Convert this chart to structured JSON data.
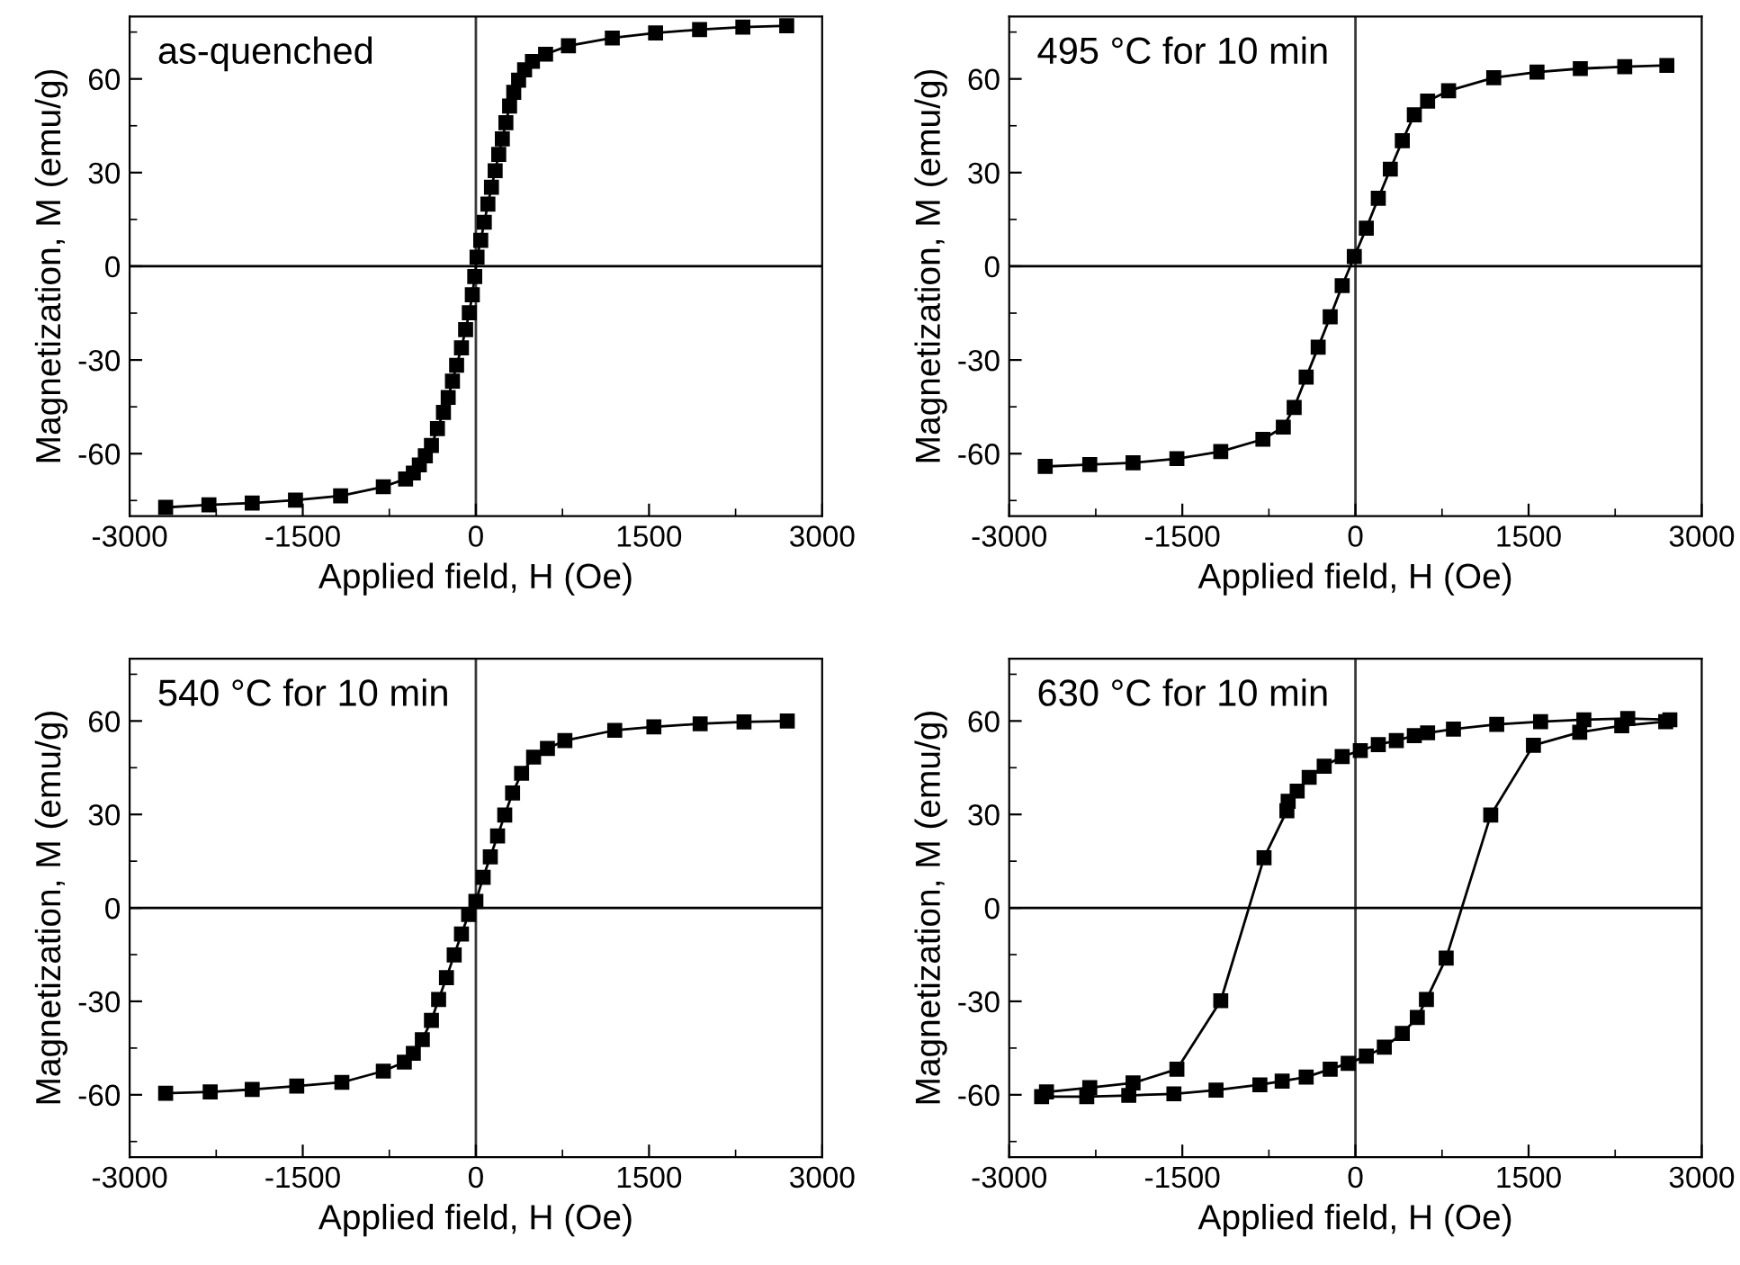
{
  "chart_data": [
    {
      "type": "line",
      "annotations": [
        "as-quenched"
      ],
      "xlabel": "Applied field, H (Oe)",
      "ylabel": "Magnetization, M (emu/g)",
      "xlim": [
        -3000,
        3000
      ],
      "ylim": [
        -80,
        80
      ],
      "xticks": [
        -3000,
        {
          "value": -2250,
          "label": null
        },
        -1500,
        {
          "value": -750,
          "label": null
        },
        0,
        {
          "value": 750,
          "label": null
        },
        1500,
        {
          "value": 2250,
          "label": null
        },
        3000
      ],
      "yticks": [
        {
          "value": -75,
          "label": null
        },
        -60,
        {
          "value": -45,
          "label": null
        },
        -30,
        {
          "value": -15,
          "label": null
        },
        0,
        {
          "value": 15,
          "label": null
        },
        30,
        {
          "value": 45,
          "label": null
        },
        60,
        {
          "value": 75,
          "label": null
        }
      ],
      "ref_lines": [
        {
          "axis": "x",
          "value": 0,
          "color": "#3a3a3a"
        },
        {
          "axis": "y",
          "value": 0,
          "color": "#000000"
        }
      ],
      "marker": "square",
      "line_style": "solid",
      "grid": false,
      "legend": false,
      "series": [
        {
          "color": "#000000",
          "x": [
            -2688,
            -2313,
            -1938,
            -1563,
            -1172,
            -802,
            -609,
            -542,
            -490,
            -438,
            -385,
            -333,
            -281,
            -240,
            -203,
            -167,
            -125,
            -89,
            -57,
            -31,
            -10,
            10,
            42,
            73,
            104,
            135,
            167,
            198,
            229,
            260,
            292,
            328,
            370,
            422,
            490,
            604,
            802,
            1182,
            1557,
            1938,
            2313,
            2693
          ],
          "values": [
            -77.2,
            -76.4,
            -75.8,
            -74.9,
            -73.5,
            -70.6,
            -68.1,
            -66.2,
            -63.6,
            -60.7,
            -57.4,
            -52,
            -46.8,
            -42,
            -36.8,
            -31.7,
            -26.1,
            -20.3,
            -14.9,
            -9.1,
            -3.3,
            2.9,
            8.3,
            14.1,
            19.9,
            25.3,
            30.6,
            35.8,
            40.8,
            46,
            51.3,
            55.7,
            59.6,
            62.9,
            65.6,
            67.9,
            70.6,
            73.1,
            74.7,
            75.8,
            76.6,
            77
          ]
        }
      ]
    },
    {
      "type": "line",
      "annotations": [
        "495 °C for 10 min"
      ],
      "xlabel": "Applied field, H (Oe)",
      "ylabel": "Magnetization, M (emu/g)",
      "xlim": [
        -3000,
        3000
      ],
      "ylim": [
        -80,
        80
      ],
      "xticks": [
        -3000,
        {
          "value": -2250,
          "label": null
        },
        -1500,
        {
          "value": -750,
          "label": null
        },
        0,
        {
          "value": 750,
          "label": null
        },
        1500,
        {
          "value": 2250,
          "label": null
        },
        3000
      ],
      "yticks": [
        {
          "value": -75,
          "label": null
        },
        -60,
        {
          "value": -45,
          "label": null
        },
        -30,
        {
          "value": -15,
          "label": null
        },
        0,
        {
          "value": 15,
          "label": null
        },
        30,
        {
          "value": 45,
          "label": null
        },
        60,
        {
          "value": 75,
          "label": null
        }
      ],
      "ref_lines": [
        {
          "axis": "x",
          "value": 0,
          "color": "#3a3a3a"
        },
        {
          "axis": "y",
          "value": 0,
          "color": "#000000"
        }
      ],
      "marker": "square",
      "line_style": "solid",
      "grid": false,
      "legend": false,
      "series": [
        {
          "color": "#000000",
          "x": [
            -2688,
            -2302,
            -1927,
            -1547,
            -1167,
            -802,
            -625,
            -531,
            -427,
            -323,
            -219,
            -115,
            -10,
            94,
            198,
            302,
            406,
            510,
            625,
            807,
            1198,
            1573,
            1948,
            2333,
            2698
          ],
          "values": [
            -64.1,
            -63.5,
            -62.9,
            -61.6,
            -59.3,
            -55.4,
            -51.5,
            -45.2,
            -35.5,
            -25.9,
            -16.2,
            -6.2,
            3.1,
            12.2,
            21.8,
            31.1,
            40.2,
            48.5,
            52.9,
            56.2,
            60.4,
            62.2,
            63.3,
            63.9,
            64.3
          ]
        }
      ]
    },
    {
      "type": "line",
      "annotations": [
        "540 °C for 10 min"
      ],
      "xlabel": "Applied field, H (Oe)",
      "ylabel": "Magnetization, M (emu/g)",
      "xlim": [
        -3000,
        3000
      ],
      "ylim": [
        -80,
        80
      ],
      "xticks": [
        -3000,
        {
          "value": -2250,
          "label": null
        },
        -1500,
        {
          "value": -750,
          "label": null
        },
        0,
        {
          "value": 750,
          "label": null
        },
        1500,
        {
          "value": 2250,
          "label": null
        },
        3000
      ],
      "yticks": [
        {
          "value": -75,
          "label": null
        },
        -60,
        {
          "value": -45,
          "label": null
        },
        -30,
        {
          "value": -15,
          "label": null
        },
        0,
        {
          "value": 15,
          "label": null
        },
        30,
        {
          "value": 45,
          "label": null
        },
        60,
        {
          "value": 75,
          "label": null
        }
      ],
      "ref_lines": [
        {
          "axis": "x",
          "value": 0,
          "color": "#3a3a3a"
        },
        {
          "axis": "y",
          "value": 0,
          "color": "#000000"
        }
      ],
      "marker": "square",
      "line_style": "solid",
      "grid": false,
      "legend": false,
      "series": [
        {
          "color": "#000000",
          "x": [
            -2688,
            -2302,
            -1938,
            -1552,
            -1161,
            -802,
            -620,
            -542,
            -464,
            -385,
            -323,
            -255,
            -188,
            -125,
            -63,
            0,
            63,
            125,
            188,
            250,
            318,
            396,
            500,
            620,
            771,
            1203,
            1542,
            1943,
            2323,
            2698
          ],
          "values": [
            -59.5,
            -59.1,
            -58.3,
            -57.2,
            -56,
            -52.4,
            -49.5,
            -46.7,
            -42.3,
            -36.1,
            -29.4,
            -22.4,
            -15.1,
            -8.4,
            -2.1,
            2.1,
            9.8,
            16.4,
            23.1,
            29.8,
            36.9,
            43.2,
            48.4,
            51.2,
            53.7,
            57,
            58.1,
            59.1,
            59.7,
            60
          ]
        }
      ]
    },
    {
      "type": "line",
      "annotations": [
        "630 °C for 10 min"
      ],
      "xlabel": "Applied field, H (Oe)",
      "ylabel": "Magnetization, M (emu/g)",
      "xlim": [
        -3000,
        3000
      ],
      "ylim": [
        -80,
        80
      ],
      "xticks": [
        -3000,
        {
          "value": -2250,
          "label": null
        },
        -1500,
        {
          "value": -750,
          "label": null
        },
        0,
        {
          "value": 750,
          "label": null
        },
        1500,
        {
          "value": 2250,
          "label": null
        },
        3000
      ],
      "yticks": [
        {
          "value": -75,
          "label": null
        },
        -60,
        {
          "value": -45,
          "label": null
        },
        -30,
        {
          "value": -15,
          "label": null
        },
        0,
        {
          "value": 15,
          "label": null
        },
        30,
        {
          "value": 45,
          "label": null
        },
        60,
        {
          "value": 75,
          "label": null
        }
      ],
      "ref_lines": [
        {
          "axis": "x",
          "value": 0,
          "color": "#3a3a3a"
        },
        {
          "axis": "y",
          "value": 0,
          "color": "#000000"
        }
      ],
      "marker": "square",
      "line_style": "solid",
      "grid": false,
      "legend": false,
      "series": [
        {
          "color": "#000000",
          "x": [
            2724,
            2359,
            1979,
            1604,
            1224,
            849,
            625,
            510,
            354,
            198,
            42,
            -115,
            -271,
            -401,
            -505,
            -583,
            -594,
            -792,
            -1167,
            -1547,
            -1927,
            -2302,
            -2677
          ],
          "values": [
            60.4,
            60.8,
            60.4,
            59.8,
            58.9,
            57.4,
            56.2,
            55.3,
            53.7,
            52.4,
            50.5,
            48.6,
            45.5,
            41.9,
            37.5,
            34.2,
            31.2,
            16.1,
            -29.8,
            -51.8,
            -56.2,
            -57.7,
            -59.1
          ]
        },
        {
          "color": "#000000",
          "x": [
            -2719,
            -2328,
            -1964,
            -1573,
            -1208,
            -828,
            -635,
            -427,
            -219,
            -63,
            94,
            250,
            406,
            536,
            615,
            786,
            1172,
            1542,
            1943,
            2307,
            2688
          ],
          "values": [
            -60.6,
            -60.6,
            -60.2,
            -59.7,
            -58.5,
            -56.8,
            -55.6,
            -54.3,
            -51.8,
            -49.9,
            -47.6,
            -44.7,
            -40.3,
            -35.2,
            -29.4,
            -16.1,
            29.8,
            52.2,
            56.4,
            58.5,
            59.8
          ]
        }
      ]
    }
  ]
}
